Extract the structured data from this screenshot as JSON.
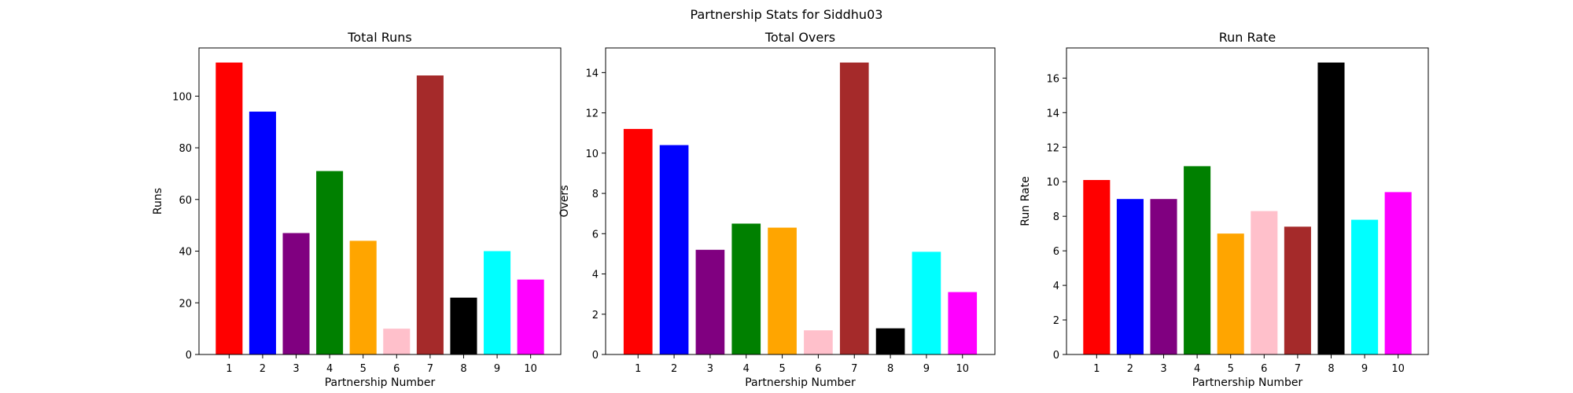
{
  "figure": {
    "suptitle": "Partnership Stats for Siddhu03"
  },
  "chart_data": [
    {
      "type": "bar",
      "title": "Total Runs",
      "xlabel": "Partnership Number",
      "ylabel": "Runs",
      "categories": [
        "1",
        "2",
        "3",
        "4",
        "5",
        "6",
        "7",
        "8",
        "9",
        "10"
      ],
      "values": [
        113,
        94,
        47,
        71,
        44,
        10,
        108,
        22,
        40,
        29
      ],
      "colors": [
        "#ff0000",
        "#0000ff",
        "#800080",
        "#008000",
        "#ffa500",
        "#ffc0cb",
        "#a52a2a",
        "#000000",
        "#00ffff",
        "#ff00ff"
      ],
      "ylim": [
        0,
        118.65
      ],
      "yticks": [
        0,
        20,
        40,
        60,
        80,
        100
      ],
      "grid": false
    },
    {
      "type": "bar",
      "title": "Total Overs",
      "xlabel": "Partnership Number",
      "ylabel": "Overs",
      "categories": [
        "1",
        "2",
        "3",
        "4",
        "5",
        "6",
        "7",
        "8",
        "9",
        "10"
      ],
      "values": [
        11.2,
        10.4,
        5.2,
        6.5,
        6.3,
        1.2,
        14.5,
        1.3,
        5.1,
        3.1
      ],
      "colors": [
        "#ff0000",
        "#0000ff",
        "#800080",
        "#008000",
        "#ffa500",
        "#ffc0cb",
        "#a52a2a",
        "#000000",
        "#00ffff",
        "#ff00ff"
      ],
      "ylim": [
        0,
        15.225
      ],
      "yticks": [
        0,
        2,
        4,
        6,
        8,
        10,
        12,
        14
      ],
      "grid": false
    },
    {
      "type": "bar",
      "title": "Run Rate",
      "xlabel": "Partnership Number",
      "ylabel": "Run Rate",
      "categories": [
        "1",
        "2",
        "3",
        "4",
        "5",
        "6",
        "7",
        "8",
        "9",
        "10"
      ],
      "values": [
        10.1,
        9.0,
        9.0,
        10.9,
        7.0,
        8.3,
        7.4,
        16.9,
        7.8,
        9.4
      ],
      "colors": [
        "#ff0000",
        "#0000ff",
        "#800080",
        "#008000",
        "#ffa500",
        "#ffc0cb",
        "#a52a2a",
        "#000000",
        "#00ffff",
        "#ff00ff"
      ],
      "ylim": [
        0,
        17.745
      ],
      "yticks": [
        0,
        2,
        4,
        6,
        8,
        10,
        12,
        14,
        16
      ],
      "grid": false
    }
  ]
}
